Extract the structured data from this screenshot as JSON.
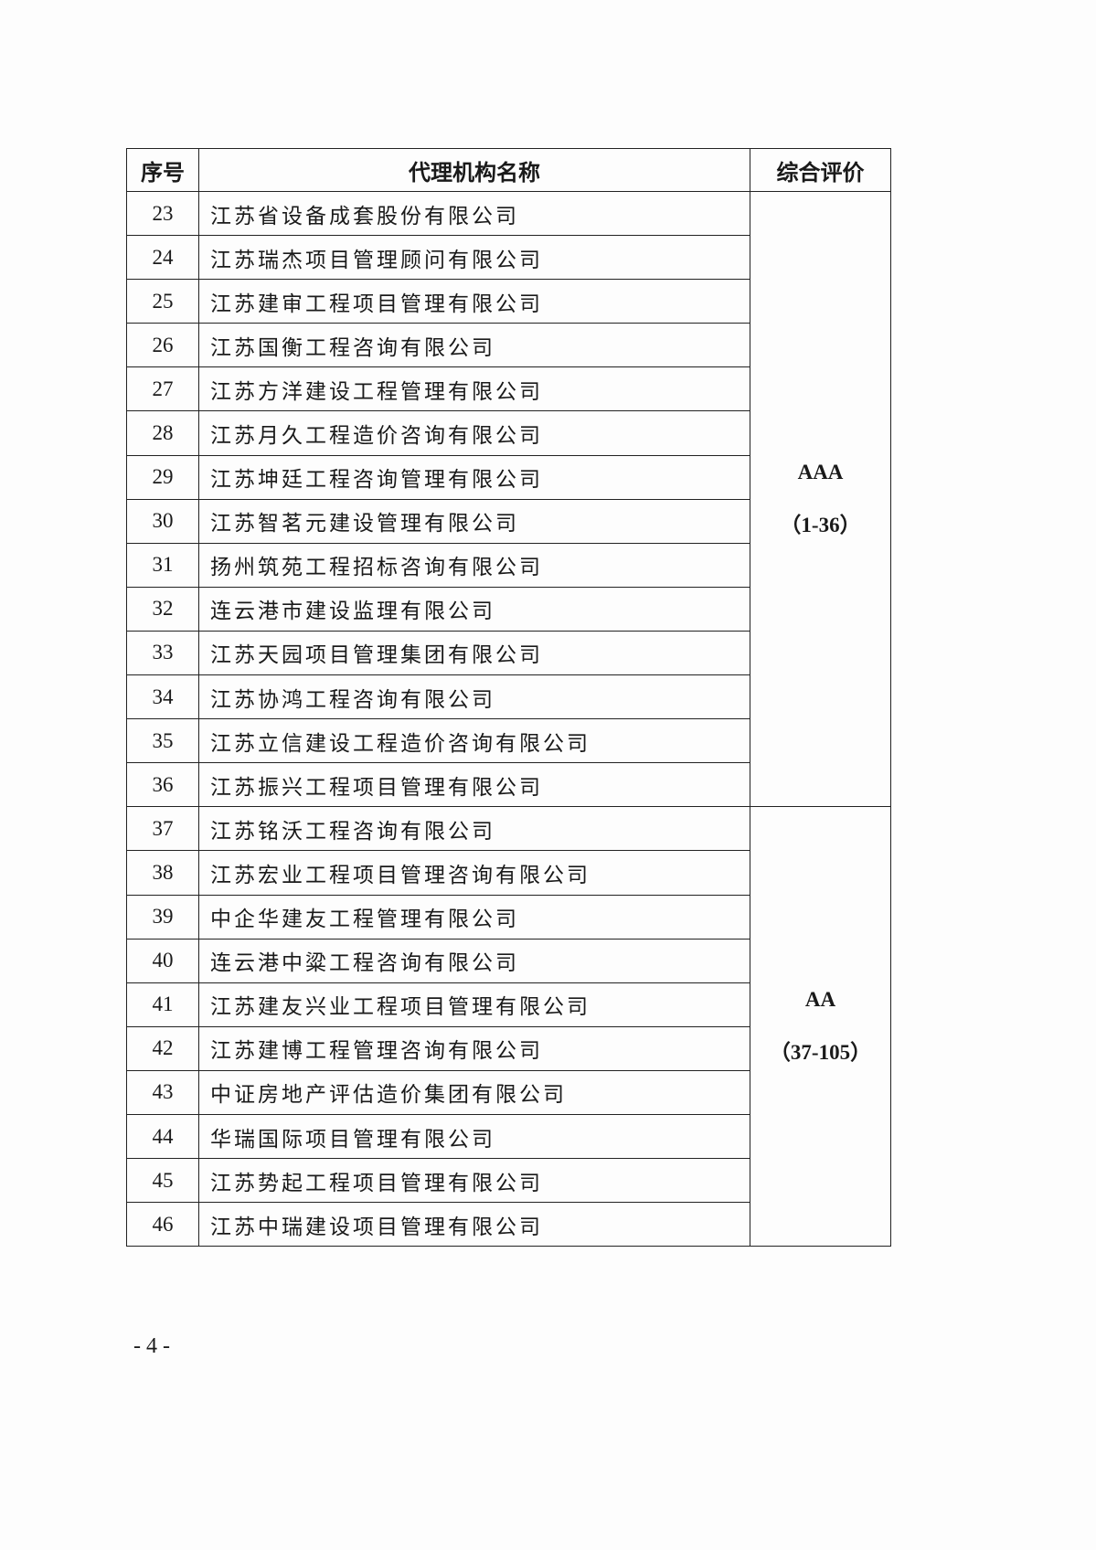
{
  "table": {
    "headers": [
      "序号",
      "代理机构名称",
      "综合评价"
    ],
    "rows": [
      {
        "no": "23",
        "name": "江苏省设备成套股份有限公司"
      },
      {
        "no": "24",
        "name": "江苏瑞杰项目管理顾问有限公司"
      },
      {
        "no": "25",
        "name": "江苏建审工程项目管理有限公司"
      },
      {
        "no": "26",
        "name": "江苏国衡工程咨询有限公司"
      },
      {
        "no": "27",
        "name": "江苏方洋建设工程管理有限公司"
      },
      {
        "no": "28",
        "name": "江苏月久工程造价咨询有限公司"
      },
      {
        "no": "29",
        "name": "江苏坤廷工程咨询管理有限公司"
      },
      {
        "no": "30",
        "name": "江苏智茗元建设管理有限公司"
      },
      {
        "no": "31",
        "name": "扬州筑苑工程招标咨询有限公司"
      },
      {
        "no": "32",
        "name": "连云港市建设监理有限公司"
      },
      {
        "no": "33",
        "name": "江苏天园项目管理集团有限公司"
      },
      {
        "no": "34",
        "name": "江苏协鸿工程咨询有限公司"
      },
      {
        "no": "35",
        "name": "江苏立信建设工程造价咨询有限公司"
      },
      {
        "no": "36",
        "name": "江苏振兴工程项目管理有限公司"
      },
      {
        "no": "37",
        "name": "江苏铭沃工程咨询有限公司"
      },
      {
        "no": "38",
        "name": "江苏宏业工程项目管理咨询有限公司"
      },
      {
        "no": "39",
        "name": "中企华建友工程管理有限公司"
      },
      {
        "no": "40",
        "name": "连云港中粱工程咨询有限公司"
      },
      {
        "no": "41",
        "name": "江苏建友兴业工程项目管理有限公司"
      },
      {
        "no": "42",
        "name": "江苏建博工程管理咨询有限公司"
      },
      {
        "no": "43",
        "name": "中证房地产评估造价集团有限公司"
      },
      {
        "no": "44",
        "name": "华瑞国际项目管理有限公司"
      },
      {
        "no": "45",
        "name": "江苏势起工程项目管理有限公司"
      },
      {
        "no": "46",
        "name": "江苏中瑞建设项目管理有限公司"
      }
    ],
    "ratings": [
      {
        "grade": "AAA",
        "range": "（1-36）",
        "span": 14
      },
      {
        "grade": "AA",
        "range": "（37-105）",
        "span": 10
      }
    ]
  },
  "footer": {
    "page_number": "- 4 -"
  }
}
